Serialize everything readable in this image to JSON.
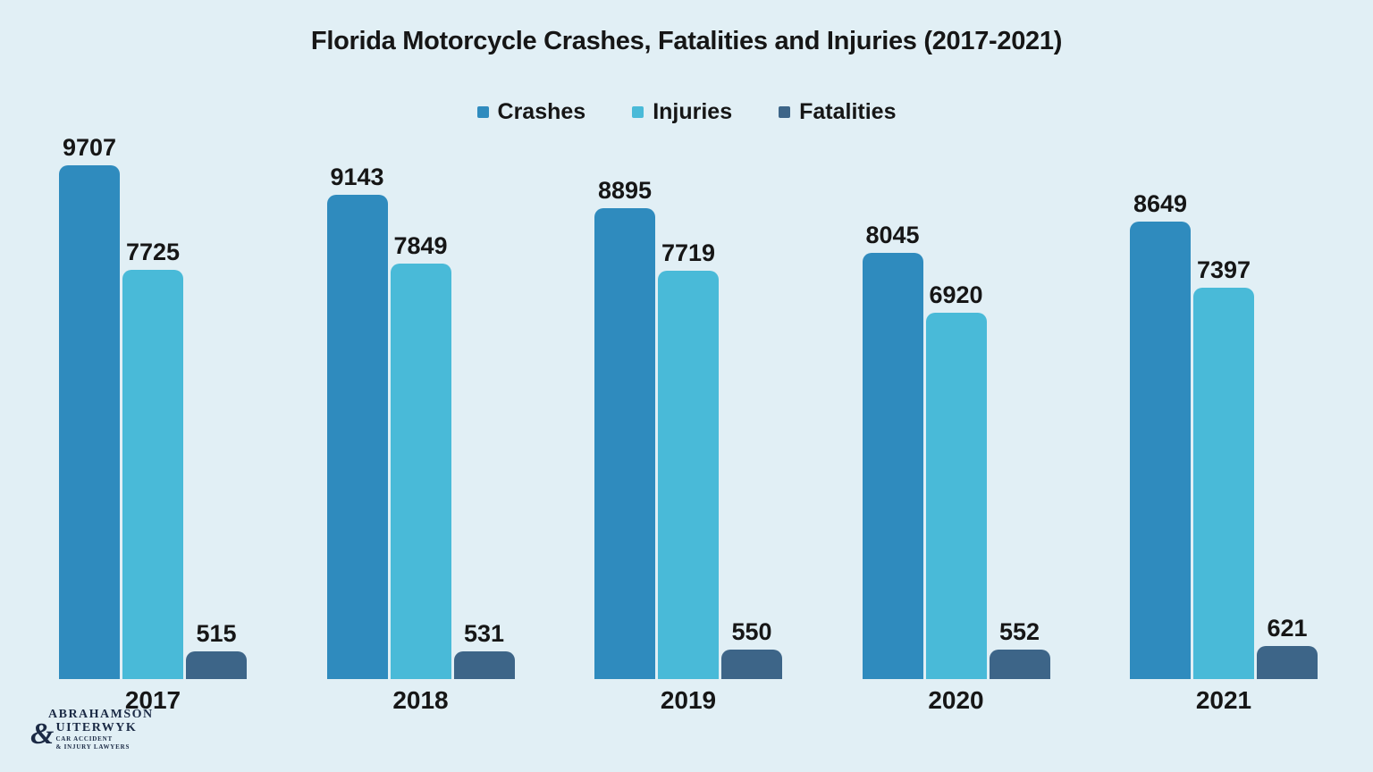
{
  "title": "Florida Motorcycle Crashes, Fatalities and Injuries (2017-2021)",
  "legend": [
    {
      "label": "Crashes",
      "color": "#2F8BBE"
    },
    {
      "label": "Injuries",
      "color": "#49BAD8"
    },
    {
      "label": "Fatalities",
      "color": "#3D6588"
    }
  ],
  "colors": {
    "background": "#E1EFF5",
    "text": "#161616",
    "crashes": "#2F8BBE",
    "injuries": "#49BAD8",
    "fatalities": "#3D6588",
    "logo": "#1B2A45"
  },
  "logo": {
    "line1": "ABRAHAMSON",
    "ampersand": "&",
    "line2": "UITERWYK",
    "sub1": "CAR ACCIDENT",
    "sub2": "& INJURY LAWYERS"
  },
  "chart_data": {
    "type": "bar",
    "title": "Florida Motorcycle Crashes, Fatalities and Injuries (2017-2021)",
    "categories": [
      "2017",
      "2018",
      "2019",
      "2020",
      "2021"
    ],
    "series": [
      {
        "name": "Crashes",
        "color": "#2F8BBE",
        "values": [
          9707,
          9143,
          8895,
          8045,
          8649
        ]
      },
      {
        "name": "Injuries",
        "color": "#49BAD8",
        "values": [
          7725,
          7849,
          7719,
          6920,
          7397
        ]
      },
      {
        "name": "Fatalities",
        "color": "#3D6588",
        "values": [
          515,
          531,
          550,
          552,
          621
        ]
      }
    ],
    "xlabel": "",
    "ylabel": "",
    "ylim": [
      0,
      9707
    ],
    "grid": false,
    "axes_shown": false,
    "value_labels": true,
    "legend_position": "top-center"
  }
}
